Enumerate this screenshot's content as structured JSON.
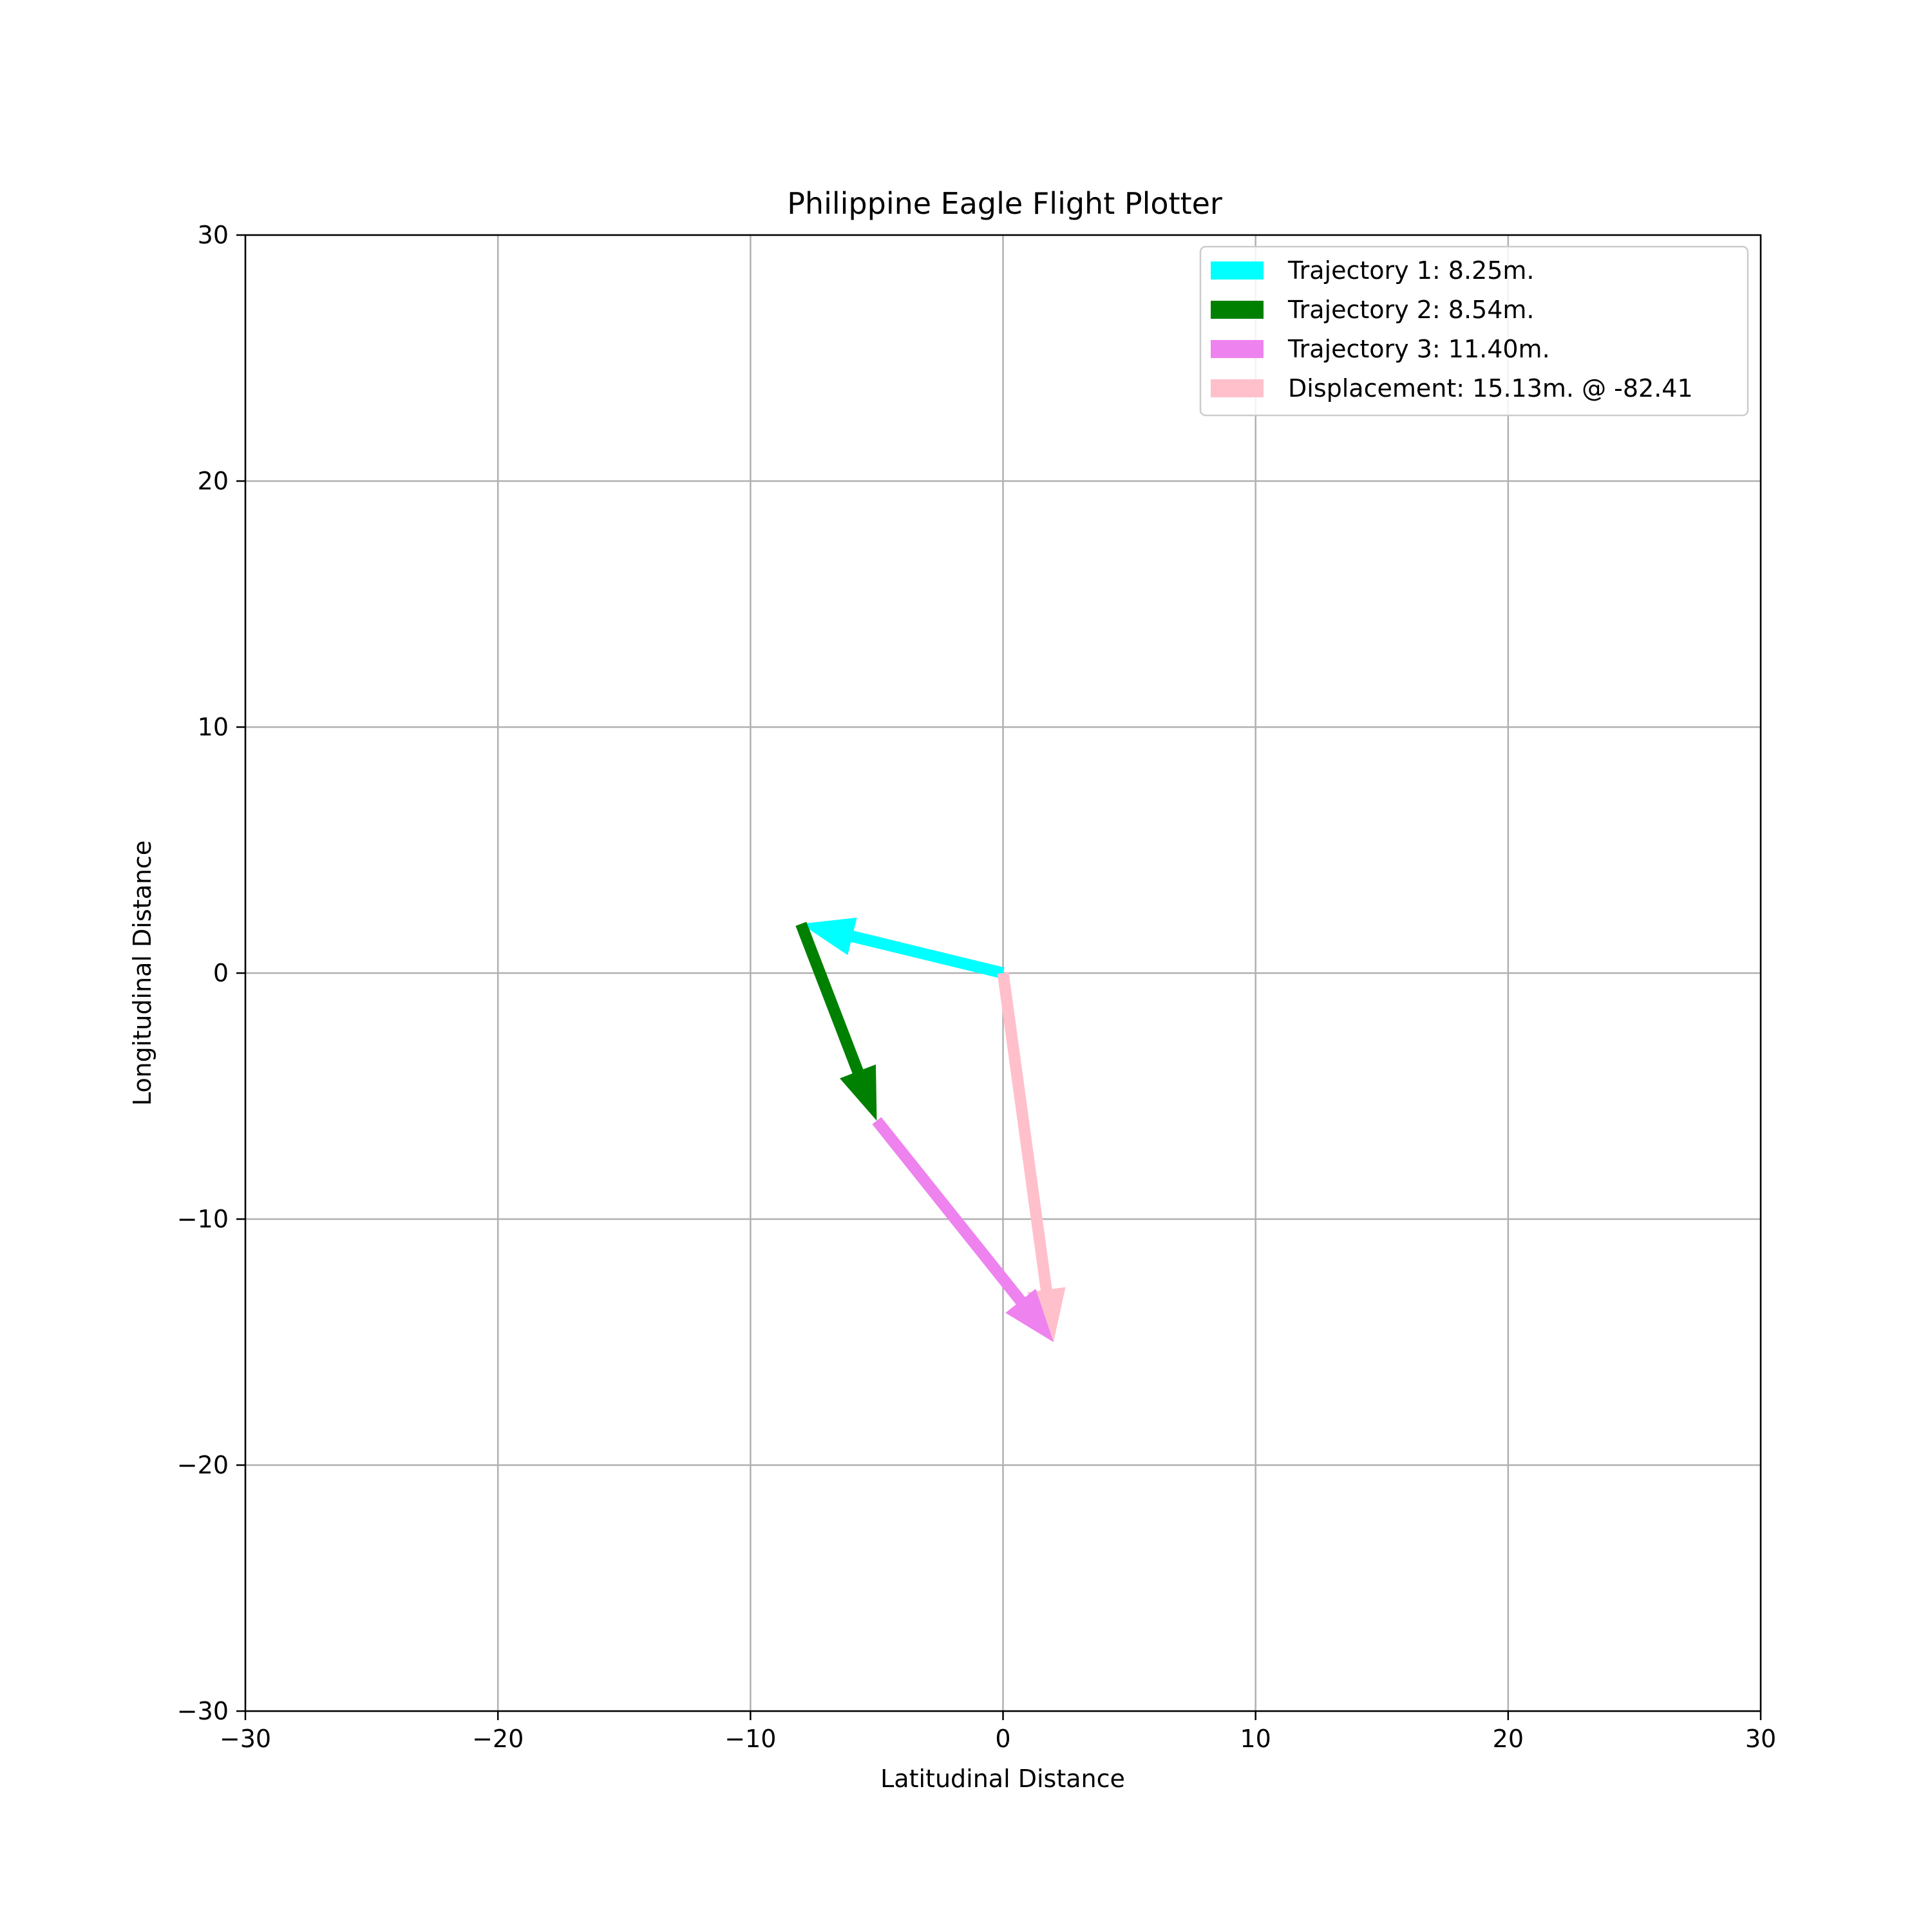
{
  "chart_data": {
    "type": "vector",
    "title": "Philippine Eagle Flight Plotter",
    "xlabel": "Latitudinal Distance",
    "ylabel": "Longitudinal Distance",
    "xlim": [
      -30,
      30
    ],
    "ylim": [
      -30,
      30
    ],
    "xticks": [
      -30,
      -20,
      -10,
      0,
      10,
      20,
      30
    ],
    "yticks": [
      -30,
      -20,
      -10,
      0,
      10,
      20,
      30
    ],
    "xtick_labels": [
      "−30",
      "−20",
      "−10",
      "0",
      "10",
      "20",
      "30"
    ],
    "ytick_labels": [
      "−30",
      "−20",
      "−10",
      "0",
      "10",
      "20",
      "30"
    ],
    "grid": true,
    "legend_position": "top-right",
    "series": [
      {
        "name": "Trajectory 1: 8.25m.",
        "color": "#00ffff",
        "start": [
          0,
          0
        ],
        "end": [
          -8,
          2
        ]
      },
      {
        "name": "Trajectory 2: 8.54m.",
        "color": "#008000",
        "start": [
          -8,
          2
        ],
        "end": [
          -5,
          -6
        ]
      },
      {
        "name": "Trajectory 3: 11.40m.",
        "color": "#ee82ee",
        "start": [
          -5,
          -6
        ],
        "end": [
          2,
          -15
        ]
      },
      {
        "name": "Displacement: 15.13m. @ -82.41",
        "color": "#ffc0cb",
        "start": [
          0,
          0
        ],
        "end": [
          2,
          -15
        ]
      }
    ]
  }
}
